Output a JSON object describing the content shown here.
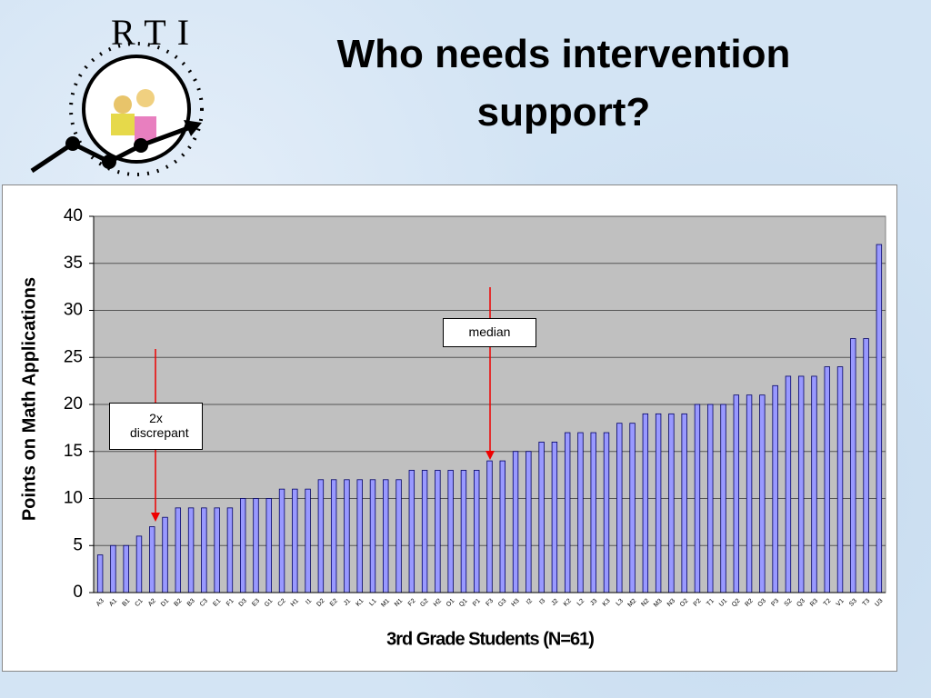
{
  "header": {
    "title": "Who needs intervention support?",
    "logo": "RTI"
  },
  "chart_data": {
    "type": "bar",
    "ylabel": "Points on Math Applications",
    "xlabel": "3rd Grade Students (N=61)",
    "annotations": [
      "median",
      "2x discrepant"
    ],
    "categories": [
      "A3",
      "A1",
      "B1",
      "C1",
      "A2",
      "D1",
      "B2",
      "B3",
      "C3",
      "E1",
      "F1",
      "D3",
      "E3",
      "G1",
      "C2",
      "H1",
      "I1",
      "D2",
      "E2",
      "J1",
      "K1",
      "L1",
      "M1",
      "N1",
      "F2",
      "G2",
      "H2",
      "O1",
      "Q1",
      "P1",
      "F3",
      "G3",
      "H3",
      "I2",
      "I3",
      "J2",
      "K2",
      "L2",
      "J3",
      "K3",
      "L3",
      "M2",
      "N2",
      "M3",
      "N3",
      "O2",
      "P2",
      "T1",
      "U1",
      "Q2",
      "R2",
      "O3",
      "P3",
      "S2",
      "Q3",
      "R3",
      "T2",
      "V1",
      "S3",
      "T3",
      "U3"
    ],
    "values": [
      4,
      5,
      5,
      6,
      7,
      8,
      9,
      9,
      9,
      9,
      9,
      10,
      10,
      10,
      11,
      11,
      11,
      12,
      12,
      12,
      12,
      12,
      12,
      12,
      13,
      13,
      13,
      13,
      13,
      13,
      14,
      14,
      15,
      15,
      16,
      16,
      17,
      17,
      17,
      17,
      18,
      18,
      19,
      19,
      19,
      19,
      20,
      20,
      20,
      21,
      21,
      21,
      22,
      23,
      23,
      23,
      24,
      24,
      27,
      27,
      37
    ],
    "color": "#9999ff",
    "ylim": [
      0,
      40
    ],
    "yticks": [
      0,
      5,
      10,
      15,
      20,
      25,
      30,
      35,
      40
    ],
    "grid": true
  }
}
